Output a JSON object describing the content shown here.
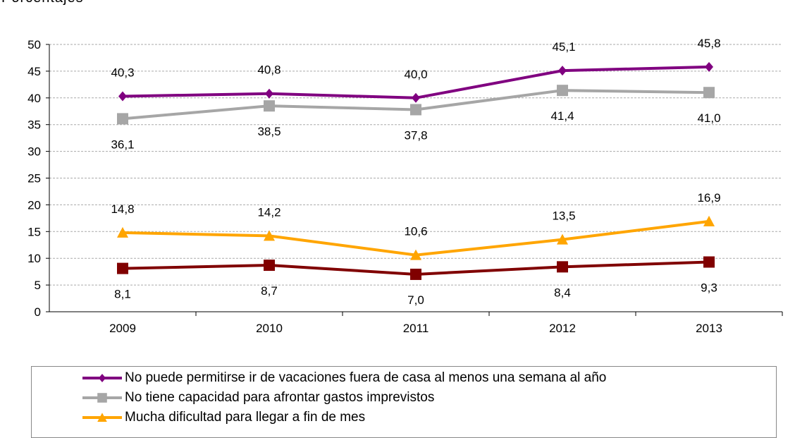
{
  "chart_data": {
    "type": "line",
    "title": "Porcentajes",
    "categories": [
      "2009",
      "2010",
      "2011",
      "2012",
      "2013"
    ],
    "ylim": [
      0,
      50
    ],
    "yticks": [
      0,
      5,
      10,
      15,
      20,
      25,
      30,
      35,
      40,
      45,
      50
    ],
    "grid": true,
    "legend_position": "bottom",
    "series": [
      {
        "name": "No puede permitirse ir de vacaciones fuera de casa al menos una semana al año",
        "color": "#800080",
        "marker": "diamond",
        "values": [
          40.3,
          40.8,
          40.0,
          45.1,
          45.8
        ],
        "labels": [
          "40,3",
          "40,8",
          "40,0",
          "45,1",
          "45,8"
        ],
        "label_pos": "above"
      },
      {
        "name": "No tiene capacidad para afrontar gastos imprevistos",
        "color": "#a6a6a6",
        "marker": "square",
        "values": [
          36.1,
          38.5,
          37.8,
          41.4,
          41.0
        ],
        "labels": [
          "36,1",
          "38,5",
          "37,8",
          "41,4",
          "41,0"
        ],
        "label_pos": "below"
      },
      {
        "name": "Mucha dificultad para llegar a fin de mes",
        "color": "#ffa500",
        "marker": "triangle",
        "values": [
          14.8,
          14.2,
          10.6,
          13.5,
          16.9
        ],
        "labels": [
          "14,8",
          "14,2",
          "10,6",
          "13,5",
          "16,9"
        ],
        "label_pos": "above"
      },
      {
        "color": "#800000",
        "marker": "square",
        "values": [
          8.1,
          8.7,
          7.0,
          8.4,
          9.3
        ],
        "labels": [
          "8,1",
          "8,7",
          "7,0",
          "8,4",
          "9,3"
        ],
        "label_pos": "below"
      }
    ]
  }
}
